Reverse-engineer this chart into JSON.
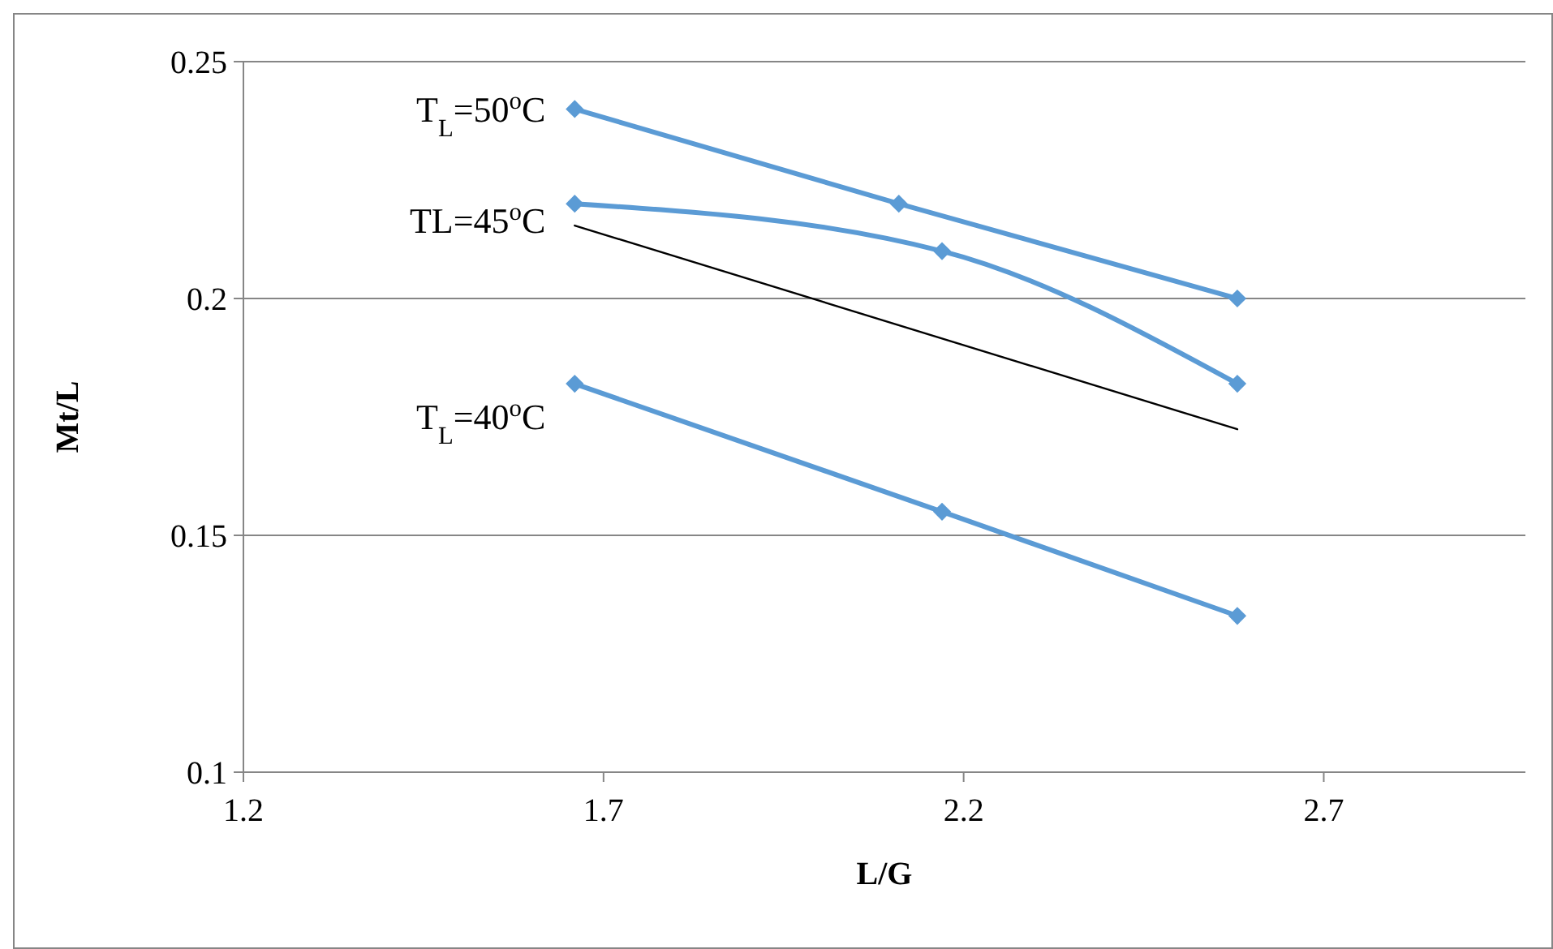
{
  "chart_data": {
    "type": "line",
    "xlabel": "L/G",
    "ylabel": "Mt/L",
    "xlim": [
      1.2,
      2.98
    ],
    "xticks": [
      1.2,
      1.7,
      2.2,
      2.7
    ],
    "ylim": [
      0.1,
      0.25
    ],
    "yticks": [
      0.1,
      0.15,
      0.2,
      0.25
    ],
    "grid": "y",
    "marker": "diamond",
    "series": [
      {
        "name": "T$_{L}$=50$^{o}$C",
        "color": "#5b9bd5",
        "x": [
          1.66,
          2.11,
          2.58
        ],
        "values": [
          0.24,
          0.22,
          0.2
        ]
      },
      {
        "name": "TL=45$^{o}$C",
        "color": "#5b9bd5",
        "x": [
          1.66,
          2.17,
          2.58
        ],
        "values": [
          0.22,
          0.21,
          0.182
        ]
      },
      {
        "name": "T$_{L}$=40$^{o}$C",
        "color": "#5b9bd5",
        "x": [
          1.66,
          2.17,
          2.58
        ],
        "values": [
          0.182,
          0.155,
          0.133
        ]
      },
      {
        "type": "line",
        "marker": "none",
        "color": "#000000",
        "x": [
          1.66,
          2.58
        ],
        "values": [
          0.2154,
          0.1724
        ]
      }
    ]
  }
}
